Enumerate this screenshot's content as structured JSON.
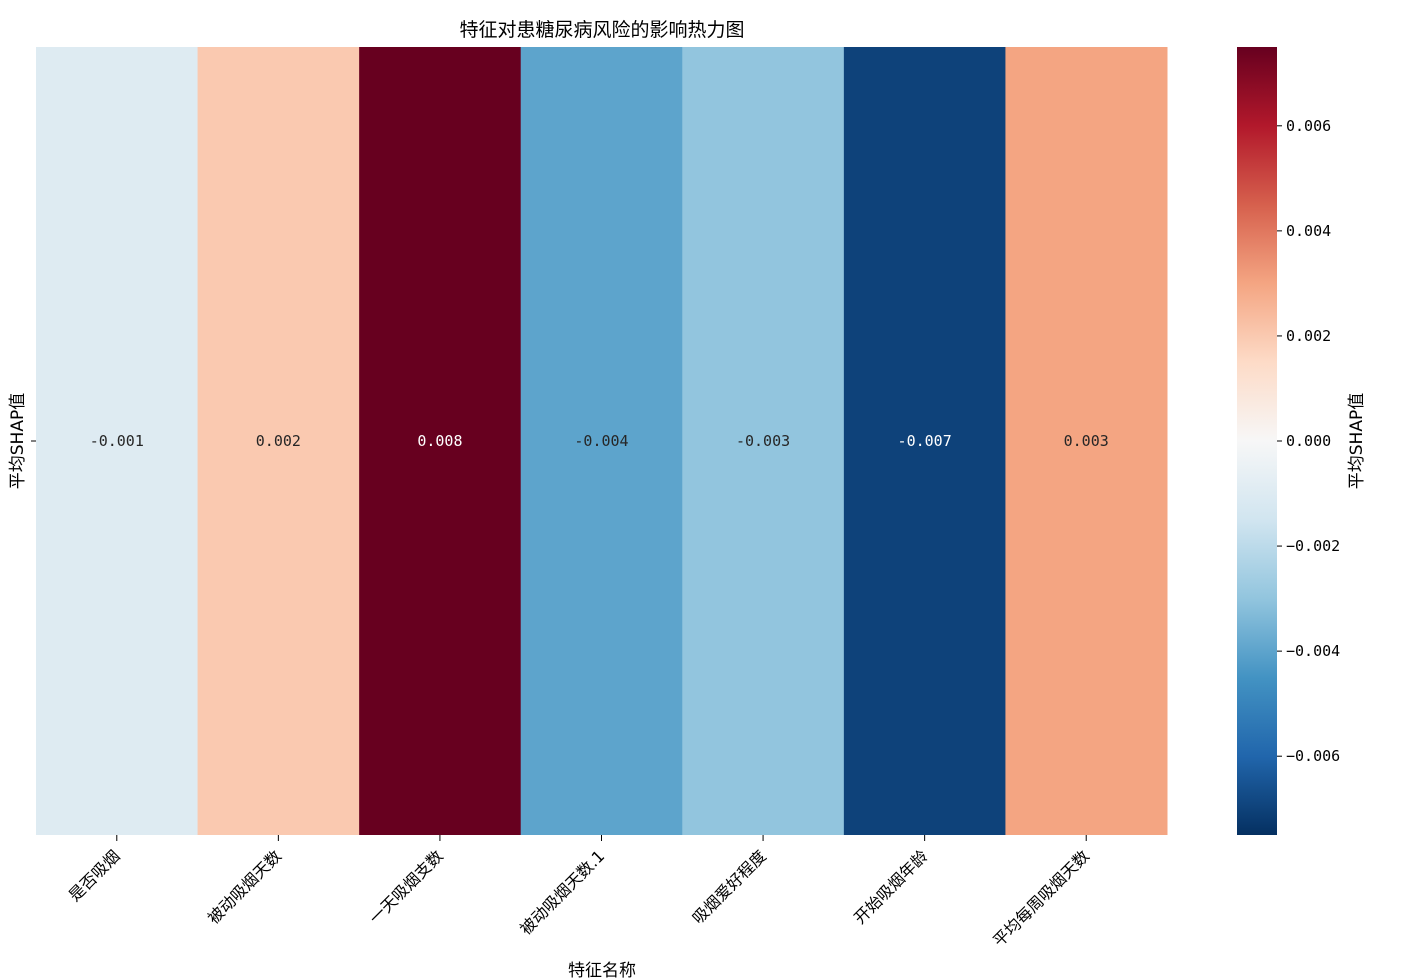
{
  "chart_data": {
    "type": "heatmap",
    "title": "特征对患糖尿病风险的影响热力图",
    "xlabel": "特征名称",
    "ylabel": "平均SHAP值",
    "categories": [
      "是否吸烟",
      "被动吸烟天数",
      "一天吸烟支数",
      "被动吸烟天数.1",
      "吸烟爱好程度",
      "开始吸烟年龄",
      "平均每周吸烟天数"
    ],
    "rows": [
      ""
    ],
    "values": [
      [
        -0.001,
        0.002,
        0.008,
        -0.004,
        -0.003,
        -0.007,
        0.003
      ]
    ],
    "value_labels": [
      "-0.001",
      "0.002",
      "0.008",
      "-0.004",
      "-0.003",
      "-0.007",
      "0.003"
    ],
    "colormap": "RdBu_r",
    "vmin": -0.0075,
    "vmax": 0.0075,
    "colorbar": {
      "label": "平均SHAP值",
      "ticks": [
        0.006,
        0.004,
        0.002,
        0.0,
        -0.002,
        -0.004,
        -0.006
      ],
      "tick_labels": [
        "0.006",
        "0.004",
        "0.002",
        "0.000",
        "−0.002",
        "−0.004",
        "−0.006"
      ]
    },
    "grid": false,
    "legend": "colorbar-right"
  }
}
